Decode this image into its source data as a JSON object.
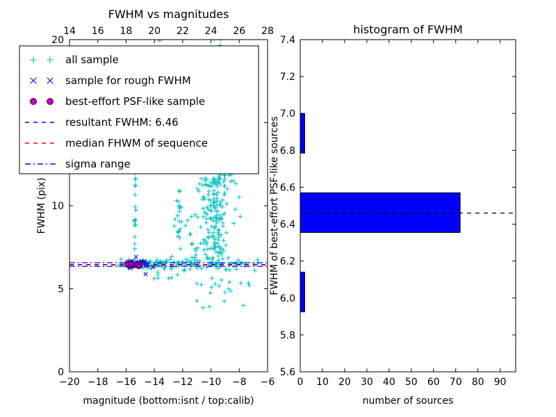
{
  "figure": {
    "background": "#ffffff",
    "seed": 7
  },
  "chart_data": [
    {
      "id": "fwhm_vs_magnitudes",
      "type": "scatter",
      "title": "FWHM vs magnitudes",
      "xlabel": "magnitude (bottom:isnt / top:calib)",
      "ylabel": "FWHM (pix)",
      "xlim": [
        -20,
        -6
      ],
      "ylim": [
        0,
        20
      ],
      "xticks_bottom": [
        -20,
        -18,
        -16,
        -14,
        -12,
        -10,
        -8,
        -6
      ],
      "xticks_top": [
        14,
        16,
        18,
        20,
        22,
        24,
        26,
        28
      ],
      "yticks": [
        0,
        5,
        10,
        15,
        20
      ],
      "series": [
        {
          "key": "all",
          "label": "all sample",
          "marker": "plus",
          "color": "#00bfbf",
          "clusters": [
            {
              "n": 80,
              "x": [
                "uniform",
                -16.4,
                -13.0
              ],
              "y": [
                "normal",
                6.48,
                0.13
              ]
            },
            {
              "n": 40,
              "x": [
                "uniform",
                -13.0,
                -10.8
              ],
              "y": [
                "normal",
                6.52,
                0.2
              ]
            },
            {
              "n": 30,
              "x": [
                "uniform",
                -10.8,
                -6.6
              ],
              "y": [
                "normal",
                6.5,
                0.2
              ]
            },
            {
              "n": 220,
              "x": [
                "normal",
                -9.7,
                0.55
              ],
              "y": [
                "uniform",
                6.2,
                13.0
              ]
            },
            {
              "n": 60,
              "x": [
                "normal",
                -9.7,
                0.4
              ],
              "y": [
                "uniform",
                13.0,
                17.0
              ]
            },
            {
              "n": 30,
              "x": [
                "normal",
                -9.6,
                0.28
              ],
              "y": [
                "uniform",
                17.0,
                20.4
              ]
            },
            {
              "n": 22,
              "x": [
                "uniform",
                -11.2,
                -7.0
              ],
              "y": [
                "uniform",
                3.8,
                6.2
              ]
            },
            {
              "n": 18,
              "x": [
                "uniform",
                -12.6,
                -10.9
              ],
              "y": [
                "uniform",
                6.8,
                10.5
              ]
            },
            {
              "n": 20,
              "x": [
                "normal",
                -15.35,
                0.05
              ],
              "y": [
                "uniform",
                6.6,
                12.9
              ]
            },
            {
              "n": 12,
              "x": [
                "normal",
                -12.25,
                0.07
              ],
              "y": [
                "uniform",
                6.8,
                11.5
              ]
            },
            {
              "n": 8,
              "x": [
                "uniform",
                -14.2,
                -12.0
              ],
              "y": [
                "uniform",
                5.6,
                6.2
              ]
            }
          ],
          "points": [
            [
              -13.62,
              19.95
            ],
            [
              -13.5,
              20.3
            ],
            [
              -16.55,
              6.4
            ],
            [
              -6.9,
              6.1
            ],
            [
              -7.3,
              5.2
            ]
          ]
        },
        {
          "key": "rough",
          "label": "sample for rough FWHM",
          "marker": "x",
          "color": "#0000ff",
          "clusters": [
            {
              "n": 26,
              "x": [
                "uniform",
                -15.85,
                -14.55
              ],
              "y": [
                "normal",
                6.5,
                0.1
              ]
            }
          ],
          "points": [
            [
              -14.62,
              5.88
            ],
            [
              -15.3,
              6.92
            ],
            [
              -14.1,
              6.3
            ]
          ]
        },
        {
          "key": "psf",
          "label": "best-effort PSF-like sample",
          "marker": "circle",
          "color": "#bf00bf",
          "edge_color": "#4b004b",
          "clusters": [
            {
              "n": 42,
              "x": [
                "uniform",
                -15.95,
                -15.0
              ],
              "y": [
                "normal",
                6.44,
                0.05
              ]
            }
          ],
          "points": []
        }
      ],
      "hlines": [
        {
          "label": "sigma range upper",
          "y": 6.57,
          "color": "#0000ff",
          "style": "dashdot"
        },
        {
          "label": "resultant FWHM",
          "y": 6.46,
          "color": "#0000ff",
          "style": "dashed"
        },
        {
          "label": "median FHWM of sequence",
          "y": 6.43,
          "color": "#ff0000",
          "style": "dashed"
        },
        {
          "label": "sigma range lower",
          "y": 6.35,
          "color": "#0000ff",
          "style": "dashdot"
        }
      ],
      "legend": [
        {
          "label": "all sample",
          "type": "marker",
          "marker": "plus",
          "color": "#00bfbf"
        },
        {
          "label": "sample for rough FWHM",
          "type": "marker",
          "marker": "x",
          "color": "#0000ff"
        },
        {
          "label": "best-effort PSF-like sample",
          "type": "marker",
          "marker": "circle",
          "color": "#bf00bf",
          "edge_color": "#4b004b"
        },
        {
          "label": "resultant FWHM: 6.46",
          "type": "line",
          "style": "dashed",
          "color": "#0000ff"
        },
        {
          "label": "median FHWM of sequence",
          "type": "line",
          "style": "dashed",
          "color": "#ff0000"
        },
        {
          "label": "sigma range",
          "type": "line",
          "style": "dashdot",
          "color": "#0000ff"
        }
      ]
    },
    {
      "id": "fwhm_histogram",
      "type": "bar",
      "orientation": "horizontal",
      "title": "histogram of FWHM",
      "xlabel": "number of sources",
      "ylabel": "FWHM of best-effort PSF-like sources",
      "xlim": [
        0,
        97
      ],
      "ylim": [
        5.6,
        7.4
      ],
      "xticks": [
        0,
        10,
        20,
        30,
        40,
        50,
        60,
        70,
        80,
        90
      ],
      "yticks": [
        5.6,
        5.8,
        6.0,
        6.2,
        6.4,
        6.6,
        6.8,
        7.0,
        7.2,
        7.4
      ],
      "bar_color": "#0000ff",
      "bar_edge_color": "#000000",
      "bins": [
        {
          "from": 5.925,
          "to": 6.14,
          "count": 2
        },
        {
          "from": 6.14,
          "to": 6.355,
          "count": 0
        },
        {
          "from": 6.355,
          "to": 6.57,
          "count": 72
        },
        {
          "from": 6.57,
          "to": 6.785,
          "count": 0
        },
        {
          "from": 6.785,
          "to": 7.0,
          "count": 2
        }
      ],
      "hlines": [
        {
          "label": "median FWHM",
          "y": 6.46,
          "color": "#000000",
          "style": "dashed"
        }
      ]
    }
  ]
}
